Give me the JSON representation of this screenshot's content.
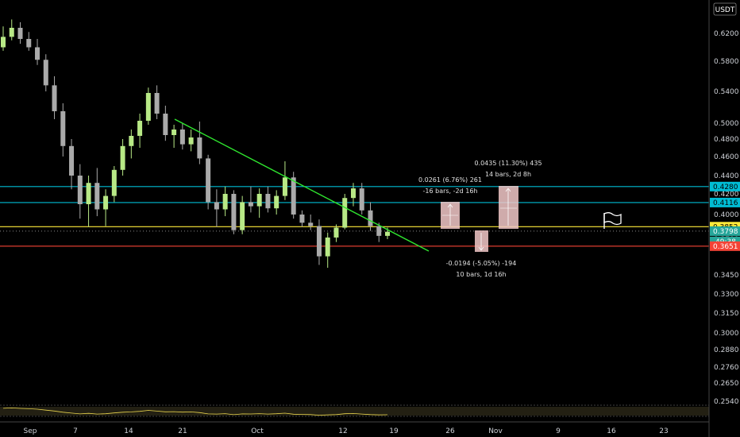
{
  "currency": "USDT",
  "chart_data": {
    "type": "candlestick",
    "y_axis_ticks": [
      0.62,
      0.58,
      0.54,
      0.5,
      0.48,
      0.46,
      0.44,
      0.42,
      0.4,
      0.37,
      0.345,
      0.33,
      0.315,
      0.3,
      0.288,
      0.276,
      0.265,
      0.254
    ],
    "x_axis_ticks": [
      "Sep",
      "7",
      "14",
      "21",
      "Oct",
      "12",
      "19",
      "26",
      "Nov",
      "9",
      "16",
      "23"
    ],
    "horizontal_lines": [
      {
        "price": 0.428,
        "label": "0.4280",
        "color": "#00bcd4"
      },
      {
        "price": 0.4116,
        "label": "0.4116",
        "color": "#00bcd4"
      },
      {
        "price": 0.3852,
        "label": "0.3852",
        "color": "#ffeb3b"
      },
      {
        "price": 0.3651,
        "label": "0.3651",
        "color": "#f44336"
      }
    ],
    "last_price": {
      "value": 0.3798,
      "label": "0.3798",
      "countdown": "49:38",
      "color": "#26a69a"
    },
    "trendline_color": "#2fe62f",
    "candle_up_color": "#b8e986",
    "candle_down_color": "#aaaaaa",
    "measurements": [
      {
        "line1": "0.0261 (6.76%) 261",
        "line2": "-16 bars, -2d 16h",
        "direction": "up"
      },
      {
        "line1": "0.0435 (11.30%) 435",
        "line2": "14 bars, 2d 8h",
        "direction": "up"
      },
      {
        "line1": "-0.0194 (-5.05%) -194",
        "line2": "10 bars, 1d 16h",
        "direction": "down"
      }
    ],
    "candles": [
      [
        0.6,
        0.63,
        0.595,
        0.615
      ],
      [
        0.615,
        0.64,
        0.61,
        0.628
      ],
      [
        0.628,
        0.636,
        0.605,
        0.612
      ],
      [
        0.612,
        0.622,
        0.595,
        0.6
      ],
      [
        0.6,
        0.612,
        0.575,
        0.582
      ],
      [
        0.582,
        0.59,
        0.54,
        0.548
      ],
      [
        0.548,
        0.56,
        0.505,
        0.515
      ],
      [
        0.515,
        0.525,
        0.46,
        0.472
      ],
      [
        0.472,
        0.48,
        0.425,
        0.44
      ],
      [
        0.44,
        0.452,
        0.395,
        0.41
      ],
      [
        0.41,
        0.44,
        0.385,
        0.432
      ],
      [
        0.432,
        0.448,
        0.398,
        0.405
      ],
      [
        0.405,
        0.425,
        0.386,
        0.418
      ],
      [
        0.418,
        0.45,
        0.412,
        0.446
      ],
      [
        0.446,
        0.48,
        0.44,
        0.472
      ],
      [
        0.472,
        0.492,
        0.458,
        0.484
      ],
      [
        0.484,
        0.512,
        0.47,
        0.503
      ],
      [
        0.503,
        0.545,
        0.498,
        0.538
      ],
      [
        0.538,
        0.548,
        0.505,
        0.512
      ],
      [
        0.512,
        0.522,
        0.478,
        0.485
      ],
      [
        0.485,
        0.498,
        0.47,
        0.492
      ],
      [
        0.492,
        0.5,
        0.468,
        0.474
      ],
      [
        0.474,
        0.492,
        0.466,
        0.482
      ],
      [
        0.482,
        0.502,
        0.452,
        0.458
      ],
      [
        0.458,
        0.462,
        0.405,
        0.412
      ],
      [
        0.412,
        0.425,
        0.385,
        0.405
      ],
      [
        0.405,
        0.428,
        0.398,
        0.42
      ],
      [
        0.42,
        0.424,
        0.376,
        0.381
      ],
      [
        0.381,
        0.418,
        0.376,
        0.412
      ],
      [
        0.412,
        0.428,
        0.402,
        0.408
      ],
      [
        0.408,
        0.426,
        0.396,
        0.42
      ],
      [
        0.42,
        0.428,
        0.402,
        0.406
      ],
      [
        0.406,
        0.424,
        0.4,
        0.418
      ],
      [
        0.418,
        0.455,
        0.414,
        0.438
      ],
      [
        0.438,
        0.444,
        0.395,
        0.4
      ],
      [
        0.4,
        0.404,
        0.385,
        0.39
      ],
      [
        0.39,
        0.4,
        0.381,
        0.386
      ],
      [
        0.386,
        0.394,
        0.352,
        0.358
      ],
      [
        0.358,
        0.378,
        0.35,
        0.372
      ],
      [
        0.372,
        0.388,
        0.368,
        0.384
      ],
      [
        0.384,
        0.42,
        0.382,
        0.416
      ],
      [
        0.416,
        0.432,
        0.408,
        0.426
      ],
      [
        0.426,
        0.432,
        0.4,
        0.404
      ],
      [
        0.404,
        0.412,
        0.38,
        0.386
      ],
      [
        0.386,
        0.39,
        0.368,
        0.374
      ],
      [
        0.374,
        0.384,
        0.37,
        0.379
      ]
    ]
  }
}
